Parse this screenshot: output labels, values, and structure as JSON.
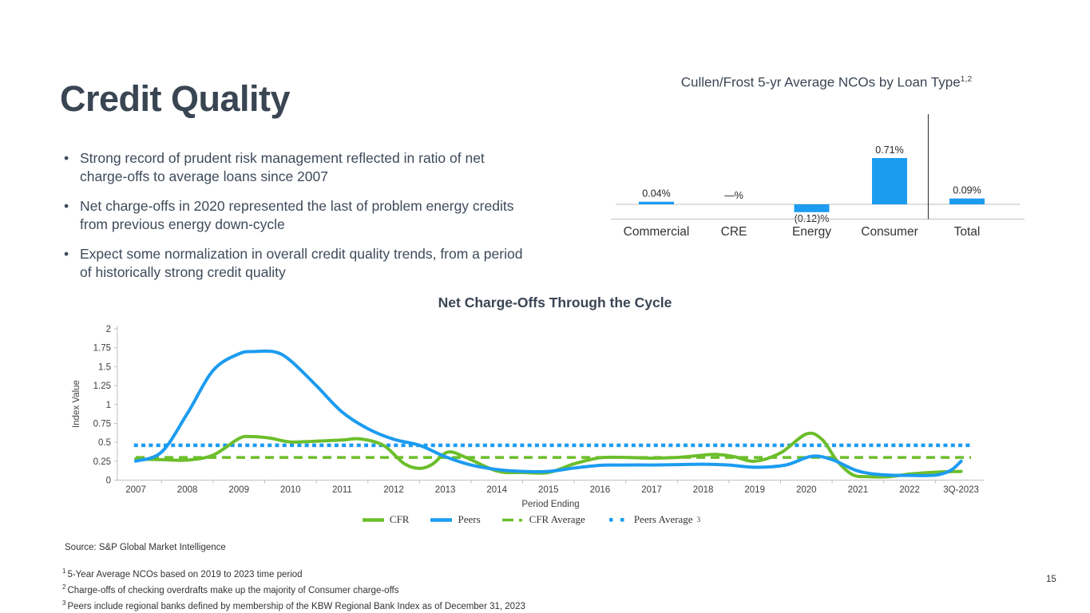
{
  "slide": {
    "title": "Credit Quality",
    "bullets": [
      "Strong record of prudent risk management reflected in ratio of net charge-offs to average loans since 2007",
      "Net charge-offs in 2020 represented the last of problem energy credits from previous energy down-cycle",
      "Expect some normalization in overall credit quality trends, from a period of historically strong credit quality"
    ],
    "source": "Source: S&P Global Market Intelligence",
    "footnotes": [
      {
        "sup": "1",
        "text": "5-Year Average NCOs based on 2019 to 2023 time period"
      },
      {
        "sup": "2",
        "text": "Charge-offs of checking overdrafts make up the majority of Consumer charge-offs"
      },
      {
        "sup": "3",
        "text": "Peers include regional banks defined by membership of the KBW Regional Bank Index as of December 31, 2023"
      }
    ],
    "page_number": "15"
  },
  "colors": {
    "accent_blue": "#1c9cf0",
    "accent_green": "#6cbe2b",
    "dark_slate": "#3a4553",
    "axis_gray": "#bfbfbf",
    "separator_gray": "#404040",
    "tick_text": "#404040"
  },
  "chart_data": [
    {
      "type": "bar",
      "title": "Cullen/Frost 5-yr Average NCOs by Loan Type",
      "title_superscript": "1,2",
      "categories": [
        "Commercial",
        "CRE",
        "Energy",
        "Consumer",
        "Total"
      ],
      "values": [
        0.04,
        0,
        -0.12,
        0.71,
        0.09
      ],
      "labels": [
        "0.04%",
        "—%",
        "(0.12)%",
        "0.71%",
        "0.09%"
      ],
      "bar_color": "#1c9cf0",
      "separator_before_index": 4,
      "ylim": [
        -0.2,
        1.2
      ],
      "grid": false,
      "legend": "none"
    },
    {
      "type": "line",
      "title": "Net Charge-Offs Through the Cycle",
      "xlabel": "Period Ending",
      "ylabel": "Index Value",
      "ylim": [
        0,
        2
      ],
      "ytick_step": 0.25,
      "grid": false,
      "legend_position": "bottom",
      "categories": [
        "2007",
        "2008",
        "2009",
        "2010",
        "2011",
        "2012",
        "2013",
        "2014",
        "2015",
        "2016",
        "2017",
        "2018",
        "2019",
        "2020",
        "2021",
        "2022",
        "3Q-2023"
      ],
      "series": [
        {
          "name": "CFR",
          "color": "#6cbe2b",
          "style": "solid",
          "points": [
            [
              0,
              0.28
            ],
            [
              0.5,
              0.27
            ],
            [
              1,
              0.265
            ],
            [
              1.5,
              0.33
            ],
            [
              2,
              0.55
            ],
            [
              2.25,
              0.575
            ],
            [
              2.6,
              0.555
            ],
            [
              3,
              0.505
            ],
            [
              3.5,
              0.515
            ],
            [
              4,
              0.53
            ],
            [
              4.35,
              0.545
            ],
            [
              4.8,
              0.46
            ],
            [
              5.2,
              0.22
            ],
            [
              5.5,
              0.155
            ],
            [
              5.75,
              0.21
            ],
            [
              6.05,
              0.37
            ],
            [
              6.4,
              0.3
            ],
            [
              7,
              0.12
            ],
            [
              7.5,
              0.1
            ],
            [
              8,
              0.1
            ],
            [
              8.5,
              0.215
            ],
            [
              9,
              0.295
            ],
            [
              9.5,
              0.3
            ],
            [
              10,
              0.29
            ],
            [
              10.5,
              0.3
            ],
            [
              11,
              0.33
            ],
            [
              11.25,
              0.34
            ],
            [
              11.6,
              0.31
            ],
            [
              12,
              0.25
            ],
            [
              12.5,
              0.36
            ],
            [
              13,
              0.61
            ],
            [
              13.3,
              0.54
            ],
            [
              13.6,
              0.25
            ],
            [
              13.9,
              0.07
            ],
            [
              14.2,
              0.045
            ],
            [
              14.6,
              0.045
            ],
            [
              15,
              0.08
            ],
            [
              15.5,
              0.105
            ],
            [
              16,
              0.115
            ]
          ]
        },
        {
          "name": "Peers",
          "color": "#1c9cf0",
          "style": "solid",
          "points": [
            [
              0,
              0.25
            ],
            [
              0.5,
              0.37
            ],
            [
              1,
              0.88
            ],
            [
              1.5,
              1.45
            ],
            [
              2,
              1.67
            ],
            [
              2.3,
              1.7
            ],
            [
              2.7,
              1.695
            ],
            [
              3,
              1.58
            ],
            [
              3.5,
              1.25
            ],
            [
              4,
              0.9
            ],
            [
              4.5,
              0.68
            ],
            [
              5,
              0.54
            ],
            [
              5.5,
              0.46
            ],
            [
              6,
              0.31
            ],
            [
              6.5,
              0.2
            ],
            [
              7,
              0.14
            ],
            [
              7.5,
              0.115
            ],
            [
              8,
              0.115
            ],
            [
              8.5,
              0.16
            ],
            [
              9,
              0.195
            ],
            [
              9.5,
              0.2
            ],
            [
              10,
              0.2
            ],
            [
              10.5,
              0.205
            ],
            [
              11,
              0.21
            ],
            [
              11.5,
              0.2
            ],
            [
              12,
              0.17
            ],
            [
              12.6,
              0.2
            ],
            [
              13.1,
              0.315
            ],
            [
              13.5,
              0.27
            ],
            [
              14,
              0.12
            ],
            [
              14.5,
              0.07
            ],
            [
              15,
              0.062
            ],
            [
              15.5,
              0.065
            ],
            [
              15.8,
              0.13
            ],
            [
              16,
              0.25
            ]
          ]
        },
        {
          "name": "CFR Average",
          "color": "#6cbe2b",
          "style": "dashed",
          "value": 0.3
        },
        {
          "name": "Peers Average",
          "color": "#1c9cf0",
          "style": "dotted",
          "value": 0.46,
          "superscript": "3"
        }
      ]
    }
  ]
}
